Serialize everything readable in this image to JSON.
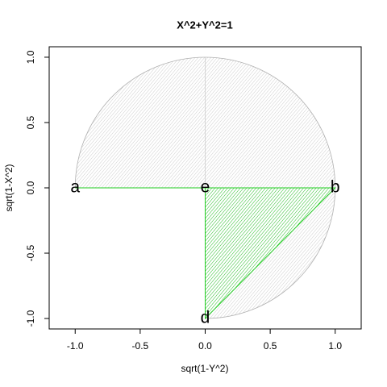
{
  "chart_data": {
    "type": "geometry",
    "title": "X^2+Y^2=1",
    "xlabel": "sqrt(1-Y^2)",
    "ylabel": "sqrt(1-X^2)",
    "xlim": [
      -1.2,
      1.2
    ],
    "ylim": [
      -1.08,
      1.08
    ],
    "xticks": [
      {
        "value": -1,
        "label": "-1.0"
      },
      {
        "value": -0.5,
        "label": "-0.5"
      },
      {
        "value": 0,
        "label": "0.0"
      },
      {
        "value": 0.5,
        "label": "0.5"
      },
      {
        "value": 1,
        "label": "1.0"
      }
    ],
    "yticks": [
      {
        "value": -1,
        "label": "-1.0"
      },
      {
        "value": -0.5,
        "label": "-0.5"
      },
      {
        "value": 0,
        "label": "0.0"
      },
      {
        "value": 0.5,
        "label": "0.5"
      },
      {
        "value": 1,
        "label": "1.0"
      }
    ],
    "radius": 1,
    "region_color": "#b0b0b0",
    "triangle_color": "#22cc22",
    "points": [
      {
        "label": "a",
        "x": -1,
        "y": 0
      },
      {
        "label": "b",
        "x": 1,
        "y": 0
      },
      {
        "label": "e",
        "x": 0,
        "y": 0
      },
      {
        "label": "d",
        "x": 0,
        "y": -1
      }
    ]
  }
}
